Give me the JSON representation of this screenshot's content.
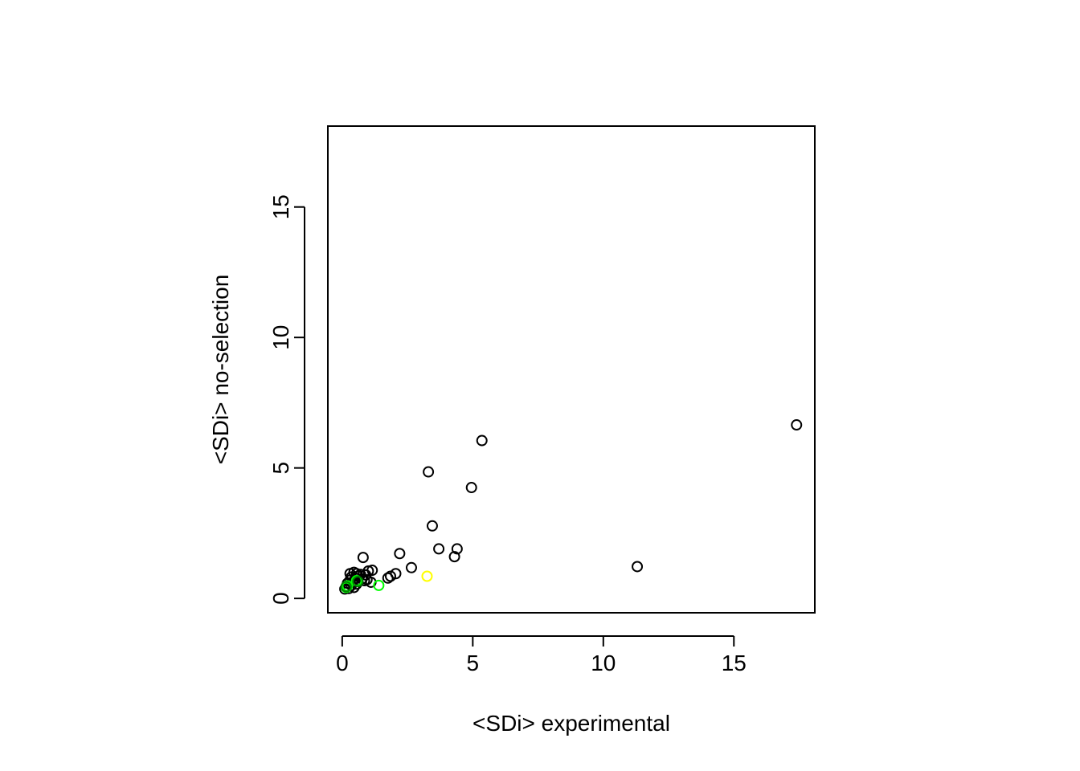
{
  "chart_data": {
    "type": "scatter",
    "title": "",
    "xlabel": "<SDi> experimental",
    "ylabel": "<SDi> no-selection",
    "xlim": [
      -0.55,
      18.1
    ],
    "ylim": [
      -0.55,
      18.1
    ],
    "xticks": [
      0,
      5,
      10,
      15
    ],
    "yticks": [
      0,
      5,
      10,
      15
    ],
    "grid": false,
    "legend": "none",
    "marker": "open-circle",
    "series": [
      {
        "color": "#000000",
        "points": [
          {
            "x": 17.4,
            "y": 6.65
          },
          {
            "x": 11.3,
            "y": 1.22
          },
          {
            "x": 5.35,
            "y": 6.05
          },
          {
            "x": 3.3,
            "y": 4.85
          },
          {
            "x": 4.95,
            "y": 4.25
          },
          {
            "x": 3.45,
            "y": 2.78
          },
          {
            "x": 3.7,
            "y": 1.9
          },
          {
            "x": 4.4,
            "y": 1.9
          },
          {
            "x": 4.3,
            "y": 1.6
          },
          {
            "x": 2.2,
            "y": 1.72
          },
          {
            "x": 2.65,
            "y": 1.18
          },
          {
            "x": 2.05,
            "y": 0.95
          },
          {
            "x": 1.85,
            "y": 0.85
          },
          {
            "x": 1.75,
            "y": 0.78
          },
          {
            "x": 0.8,
            "y": 1.57
          },
          {
            "x": 1.15,
            "y": 1.08
          },
          {
            "x": 1.0,
            "y": 1.05
          },
          {
            "x": 0.9,
            "y": 0.9
          },
          {
            "x": 0.3,
            "y": 0.95
          },
          {
            "x": 0.45,
            "y": 1.0
          },
          {
            "x": 0.55,
            "y": 0.95
          },
          {
            "x": 0.7,
            "y": 0.92
          },
          {
            "x": 0.6,
            "y": 0.85
          },
          {
            "x": 0.35,
            "y": 0.82
          },
          {
            "x": 0.5,
            "y": 0.78
          },
          {
            "x": 0.75,
            "y": 0.75
          },
          {
            "x": 0.3,
            "y": 0.7
          },
          {
            "x": 0.85,
            "y": 0.68
          },
          {
            "x": 0.4,
            "y": 0.62
          },
          {
            "x": 0.2,
            "y": 0.58
          },
          {
            "x": 0.55,
            "y": 0.55
          },
          {
            "x": 0.35,
            "y": 0.5
          },
          {
            "x": 0.15,
            "y": 0.45
          },
          {
            "x": 0.45,
            "y": 0.42
          },
          {
            "x": 0.25,
            "y": 0.38
          },
          {
            "x": 0.1,
            "y": 0.36
          },
          {
            "x": 1.1,
            "y": 0.62
          },
          {
            "x": 0.95,
            "y": 0.72
          }
        ]
      },
      {
        "color": "#ffff00",
        "points": [
          {
            "x": 3.25,
            "y": 0.85
          }
        ]
      },
      {
        "color": "#00ff00",
        "points": [
          {
            "x": 1.4,
            "y": 0.5
          },
          {
            "x": 0.55,
            "y": 0.68
          },
          {
            "x": 0.2,
            "y": 0.48
          },
          {
            "x": 0.15,
            "y": 0.42
          }
        ]
      },
      {
        "color": "#008000",
        "points": [
          {
            "x": 0.6,
            "y": 0.65
          },
          {
            "x": 0.15,
            "y": 0.45
          }
        ]
      }
    ]
  }
}
